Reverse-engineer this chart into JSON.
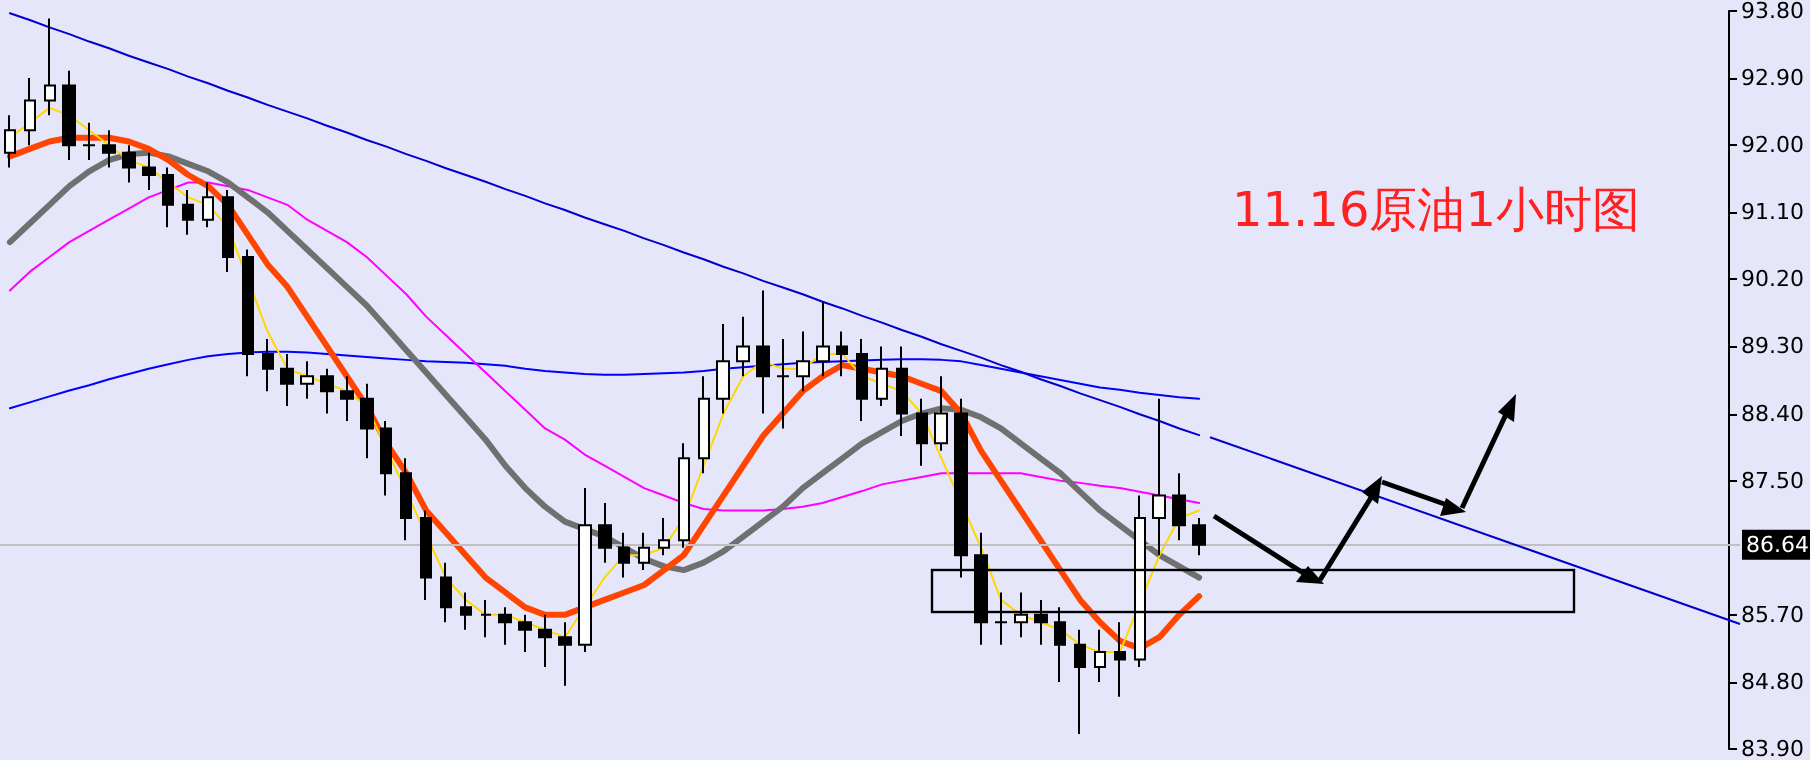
{
  "chart_data": {
    "type": "candlestick",
    "title": "11.16原油1小时图",
    "categories": [
      null,
      null,
      null,
      null,
      null,
      null,
      null,
      null,
      null,
      null,
      null,
      null,
      null,
      null,
      null,
      null,
      null,
      null,
      null,
      null,
      null,
      null,
      null,
      null,
      null,
      null,
      null,
      null,
      null,
      null,
      null,
      null,
      null,
      null,
      null,
      null,
      null,
      null,
      null,
      null,
      null,
      null,
      null,
      null,
      null,
      null,
      null,
      null,
      null,
      null,
      null,
      null,
      null,
      null,
      null,
      null,
      null,
      null,
      null,
      null,
      null
    ],
    "ohlc": [
      [
        91.9,
        92.4,
        91.7,
        92.2
      ],
      [
        92.2,
        92.9,
        92.0,
        92.6
      ],
      [
        92.6,
        93.7,
        92.4,
        92.8
      ],
      [
        92.8,
        93.0,
        91.8,
        92.0
      ],
      [
        92.0,
        92.3,
        91.8,
        92.0
      ],
      [
        92.0,
        92.2,
        91.7,
        91.9
      ],
      [
        91.9,
        92.0,
        91.5,
        91.7
      ],
      [
        91.7,
        91.9,
        91.4,
        91.6
      ],
      [
        91.6,
        91.7,
        90.9,
        91.2
      ],
      [
        91.2,
        91.4,
        90.8,
        91.0
      ],
      [
        91.0,
        91.5,
        90.9,
        91.3
      ],
      [
        91.3,
        91.4,
        90.3,
        90.5
      ],
      [
        90.5,
        90.6,
        88.9,
        89.2
      ],
      [
        89.2,
        89.4,
        88.7,
        89.0
      ],
      [
        89.0,
        89.2,
        88.5,
        88.8
      ],
      [
        88.8,
        89.1,
        88.6,
        88.9
      ],
      [
        88.9,
        89.0,
        88.4,
        88.7
      ],
      [
        88.7,
        88.9,
        88.3,
        88.6
      ],
      [
        88.6,
        88.8,
        87.8,
        88.2
      ],
      [
        88.2,
        88.3,
        87.3,
        87.6
      ],
      [
        87.6,
        87.8,
        86.7,
        87.0
      ],
      [
        87.0,
        87.1,
        85.9,
        86.2
      ],
      [
        86.2,
        86.4,
        85.6,
        85.8
      ],
      [
        85.8,
        86.0,
        85.5,
        85.7
      ],
      [
        85.7,
        85.9,
        85.4,
        85.7
      ],
      [
        85.7,
        85.8,
        85.3,
        85.6
      ],
      [
        85.6,
        85.7,
        85.2,
        85.5
      ],
      [
        85.5,
        85.7,
        85.0,
        85.4
      ],
      [
        85.4,
        85.6,
        84.75,
        85.3
      ],
      [
        85.3,
        87.4,
        85.2,
        86.9
      ],
      [
        86.9,
        87.2,
        86.4,
        86.6
      ],
      [
        86.6,
        86.8,
        86.2,
        86.4
      ],
      [
        86.4,
        86.8,
        86.3,
        86.6
      ],
      [
        86.6,
        87.0,
        86.5,
        86.7
      ],
      [
        86.7,
        88.0,
        86.6,
        87.8
      ],
      [
        87.8,
        88.9,
        87.6,
        88.6
      ],
      [
        88.6,
        89.6,
        88.4,
        89.1
      ],
      [
        89.1,
        89.7,
        88.9,
        89.3
      ],
      [
        89.3,
        90.05,
        88.4,
        88.9
      ],
      [
        88.9,
        89.4,
        88.2,
        88.9
      ],
      [
        88.9,
        89.5,
        88.7,
        89.1
      ],
      [
        89.1,
        89.9,
        88.9,
        89.3
      ],
      [
        89.3,
        89.5,
        88.9,
        89.2
      ],
      [
        89.2,
        89.4,
        88.3,
        88.6
      ],
      [
        88.6,
        89.3,
        88.5,
        89.0
      ],
      [
        89.0,
        89.3,
        88.1,
        88.4
      ],
      [
        88.4,
        88.6,
        87.7,
        88.0
      ],
      [
        88.0,
        88.9,
        87.9,
        88.4
      ],
      [
        88.4,
        88.6,
        86.2,
        86.5
      ],
      [
        86.5,
        86.8,
        85.3,
        85.6
      ],
      [
        85.6,
        86.0,
        85.3,
        85.6
      ],
      [
        85.6,
        86.0,
        85.4,
        85.7
      ],
      [
        85.7,
        85.9,
        85.3,
        85.6
      ],
      [
        85.6,
        85.8,
        84.8,
        85.3
      ],
      [
        85.3,
        85.5,
        84.1,
        85.0
      ],
      [
        85.0,
        85.5,
        84.8,
        85.2
      ],
      [
        85.2,
        85.6,
        84.6,
        85.1
      ],
      [
        85.1,
        87.3,
        85.0,
        87.0
      ],
      [
        87.0,
        88.6,
        86.5,
        87.3
      ],
      [
        87.3,
        87.6,
        86.7,
        86.9
      ],
      [
        86.9,
        87.0,
        86.5,
        86.64
      ]
    ],
    "series": [
      {
        "type": "line",
        "color": "#0000ff",
        "values": [
          88.47,
          88.55,
          88.63,
          88.71,
          88.78,
          88.86,
          88.93,
          89.0,
          89.06,
          89.12,
          89.17,
          89.2,
          89.22,
          89.23,
          89.23,
          89.22,
          89.2,
          89.18,
          89.16,
          89.14,
          89.12,
          89.1,
          89.09,
          89.08,
          89.06,
          89.04,
          89.0,
          88.97,
          88.95,
          88.93,
          88.92,
          88.92,
          88.93,
          88.94,
          88.95,
          88.97,
          89.0,
          89.02,
          89.04,
          89.06,
          89.08,
          89.09,
          89.1,
          89.11,
          89.12,
          89.13,
          89.13,
          89.12,
          89.1,
          89.05,
          89.0,
          88.95,
          88.9,
          88.85,
          88.8,
          88.75,
          88.72,
          88.68,
          88.65,
          88.62,
          88.6
        ]
      },
      {
        "type": "line",
        "color": "#ff00ff",
        "values": [
          90.05,
          90.3,
          90.5,
          90.7,
          90.85,
          91.0,
          91.15,
          91.3,
          91.4,
          91.5,
          91.5,
          91.45,
          91.4,
          91.3,
          91.2,
          91.0,
          90.85,
          90.7,
          90.5,
          90.25,
          90.0,
          89.7,
          89.45,
          89.2,
          88.95,
          88.7,
          88.45,
          88.2,
          88.05,
          87.85,
          87.7,
          87.55,
          87.4,
          87.3,
          87.2,
          87.12,
          87.1,
          87.1,
          87.1,
          87.12,
          87.15,
          87.2,
          87.28,
          87.36,
          87.45,
          87.5,
          87.55,
          87.6,
          87.6,
          87.6,
          87.6,
          87.6,
          87.55,
          87.5,
          87.47,
          87.43,
          87.4,
          87.35,
          87.3,
          87.25,
          87.2
        ]
      },
      {
        "type": "line",
        "color": "#707070",
        "values": [
          90.7,
          90.95,
          91.2,
          91.45,
          91.65,
          91.8,
          91.88,
          91.9,
          91.85,
          91.75,
          91.65,
          91.5,
          91.3,
          91.1,
          90.85,
          90.6,
          90.35,
          90.1,
          89.85,
          89.55,
          89.25,
          88.95,
          88.65,
          88.35,
          88.05,
          87.7,
          87.4,
          87.15,
          86.95,
          86.85,
          86.75,
          86.6,
          86.45,
          86.35,
          86.3,
          86.4,
          86.55,
          86.75,
          86.95,
          87.15,
          87.4,
          87.6,
          87.8,
          88.0,
          88.15,
          88.3,
          88.4,
          88.47,
          88.45,
          88.35,
          88.2,
          88.0,
          87.8,
          87.6,
          87.35,
          87.1,
          86.9,
          86.7,
          86.5,
          86.35,
          86.2
        ]
      },
      {
        "type": "line",
        "color": "#ff4500",
        "values": [
          91.85,
          91.95,
          92.05,
          92.1,
          92.1,
          92.1,
          92.05,
          91.95,
          91.8,
          91.6,
          91.45,
          91.2,
          90.8,
          90.4,
          90.1,
          89.7,
          89.3,
          88.9,
          88.5,
          88.0,
          87.6,
          87.1,
          86.8,
          86.5,
          86.2,
          86.0,
          85.8,
          85.7,
          85.7,
          85.8,
          85.9,
          86.0,
          86.1,
          86.3,
          86.5,
          86.9,
          87.3,
          87.7,
          88.1,
          88.4,
          88.7,
          88.9,
          89.05,
          89.0,
          88.95,
          88.9,
          88.8,
          88.7,
          88.4,
          87.9,
          87.5,
          87.1,
          86.7,
          86.3,
          85.9,
          85.6,
          85.35,
          85.25,
          85.4,
          85.7,
          85.95
        ]
      },
      {
        "type": "line",
        "color": "#ffd700",
        "values": [
          92.1,
          92.3,
          92.5,
          92.4,
          92.2,
          92.0,
          91.8,
          91.7,
          91.5,
          91.3,
          91.2,
          90.9,
          null,
          89.5,
          89.0,
          88.9,
          88.8,
          88.7,
          88.5,
          null,
          null,
          null,
          86.2,
          85.9,
          85.7,
          85.7,
          85.6,
          85.5,
          85.4,
          null,
          86.2,
          86.5,
          86.5,
          86.6,
          87.0,
          87.7,
          88.4,
          88.9,
          89.1,
          89.0,
          89.0,
          89.2,
          89.2,
          88.9,
          88.8,
          88.7,
          88.4,
          null,
          null,
          86.6,
          85.9,
          85.7,
          85.6,
          85.5,
          85.3,
          85.2,
          85.2,
          null,
          86.5,
          87.0,
          87.1
        ]
      },
      {
        "type": "line",
        "color": "#0000cc",
        "values": [
          93.77,
          93.68,
          93.58,
          93.49,
          93.39,
          93.3,
          93.2,
          93.11,
          93.02,
          92.92,
          92.83,
          92.73,
          92.64,
          92.54,
          92.45,
          92.36,
          92.26,
          92.17,
          92.07,
          91.98,
          91.88,
          91.79,
          91.69,
          91.6,
          91.51,
          91.41,
          91.32,
          91.22,
          91.13,
          91.03,
          90.94,
          90.85,
          90.75,
          90.66,
          90.56,
          90.47,
          90.37,
          90.28,
          90.18,
          90.09,
          90.0,
          89.9,
          89.81,
          89.71,
          89.62,
          89.52,
          89.43,
          89.33,
          89.24,
          89.15,
          89.05,
          88.96,
          88.86,
          88.77,
          88.67,
          88.58,
          88.49,
          88.39,
          88.3,
          88.2,
          88.11
        ]
      }
    ],
    "ylim": [
      83.9,
      93.8
    ],
    "yticks": [
      {
        "value": 83.9,
        "label": "83.90"
      },
      {
        "value": 84.8,
        "label": "84.80"
      },
      {
        "value": 85.7,
        "label": "85.70"
      },
      {
        "value": 87.5,
        "label": "87.50"
      },
      {
        "value": 88.4,
        "label": "88.40"
      },
      {
        "value": 89.3,
        "label": "89.30"
      },
      {
        "value": 90.2,
        "label": "90.20"
      },
      {
        "value": 91.1,
        "label": "91.10"
      },
      {
        "value": 92.0,
        "label": "92.00"
      },
      {
        "value": 92.9,
        "label": "92.90"
      },
      {
        "value": 93.8,
        "label": "93.80"
      }
    ],
    "ref_lines": [
      {
        "axis": "y",
        "value": 86.64,
        "label": "86.64",
        "color": "#c0c0c0"
      }
    ],
    "grid": false,
    "marker": "none",
    "line_style": "solid",
    "tick_labels": "y"
  }
}
